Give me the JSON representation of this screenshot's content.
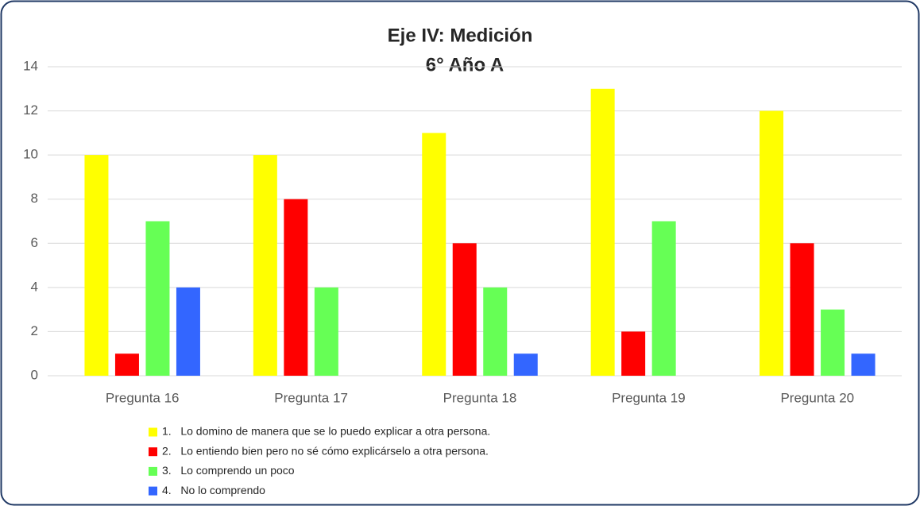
{
  "chart_data": {
    "type": "bar",
    "title": "Eje IV: Medición",
    "subtitle": "6° Año A",
    "categories": [
      "Pregunta 16",
      "Pregunta 17",
      "Pregunta 18",
      "Pregunta 19",
      "Pregunta 20"
    ],
    "series": [
      {
        "name": "1.   Lo domino de manera que se lo puedo explicar a otra persona.",
        "color": "#ffff00",
        "values": [
          10,
          10,
          11,
          13,
          12
        ]
      },
      {
        "name": "2.   Lo entiendo bien pero no sé cómo explicárselo a otra persona.",
        "color": "#ff0000",
        "values": [
          1,
          8,
          6,
          2,
          6
        ]
      },
      {
        "name": "3.   Lo comprendo un poco",
        "color": "#66ff55",
        "values": [
          7,
          4,
          4,
          7,
          3
        ]
      },
      {
        "name": "4.   No lo comprendo",
        "color": "#3366ff",
        "values": [
          4,
          0,
          1,
          0,
          1
        ]
      }
    ],
    "ylim": [
      0,
      14
    ],
    "yticks": [
      0,
      2,
      4,
      6,
      8,
      10,
      12,
      14
    ],
    "grid": true,
    "legend": "bottom"
  }
}
